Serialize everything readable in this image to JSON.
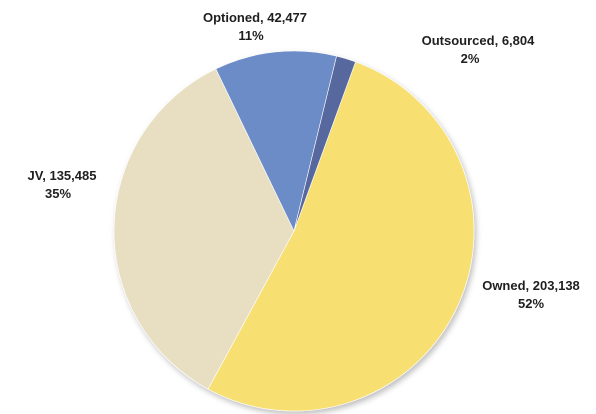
{
  "chart_data": {
    "type": "pie",
    "title": "",
    "start_angle_deg": 20,
    "direction": "clockwise",
    "legend": "none",
    "slices": [
      {
        "name": "Owned",
        "value": 203138,
        "value_label": "203,138",
        "percent_label": "52%",
        "color": "#F7DF72"
      },
      {
        "name": "JV",
        "value": 135485,
        "value_label": "135,485",
        "percent_label": "35%",
        "color": "#E8DFC2"
      },
      {
        "name": "Optioned",
        "value": 42477,
        "value_label": "42,477",
        "percent_label": "11%",
        "color": "#6C8CC8"
      },
      {
        "name": "Outsourced",
        "value": 6804,
        "value_label": "6,804",
        "percent_label": "2%",
        "color": "#56689E"
      }
    ]
  }
}
